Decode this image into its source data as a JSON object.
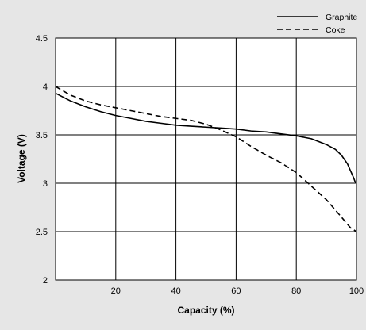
{
  "chart_data": {
    "type": "line",
    "xlabel": "Capacity (%)",
    "ylabel": "Voltage (V)",
    "xlim": [
      0,
      100
    ],
    "ylim": [
      2,
      4.5
    ],
    "xticks": [
      20,
      40,
      60,
      80,
      100
    ],
    "yticks": [
      2,
      2.5,
      3,
      3.5,
      4,
      4.5
    ],
    "grid": true,
    "legend_position": "top-right",
    "series": [
      {
        "name": "Graphite",
        "style": "solid",
        "color": "#000000",
        "x": [
          0,
          5,
          10,
          15,
          20,
          25,
          30,
          35,
          40,
          45,
          50,
          55,
          60,
          65,
          70,
          75,
          80,
          85,
          90,
          93,
          95,
          97,
          98,
          99,
          99.6,
          100
        ],
        "y": [
          3.93,
          3.85,
          3.79,
          3.74,
          3.7,
          3.67,
          3.64,
          3.62,
          3.6,
          3.59,
          3.58,
          3.57,
          3.56,
          3.54,
          3.53,
          3.51,
          3.49,
          3.46,
          3.4,
          3.35,
          3.29,
          3.2,
          3.13,
          3.06,
          3.01,
          3.0
        ]
      },
      {
        "name": "Coke",
        "style": "dashed",
        "color": "#000000",
        "x": [
          0,
          5,
          10,
          15,
          20,
          25,
          30,
          35,
          40,
          45,
          50,
          55,
          60,
          65,
          70,
          75,
          80,
          85,
          90,
          95,
          98,
          100
        ],
        "y": [
          4.0,
          3.91,
          3.85,
          3.81,
          3.78,
          3.75,
          3.72,
          3.69,
          3.67,
          3.65,
          3.61,
          3.55,
          3.48,
          3.38,
          3.29,
          3.21,
          3.11,
          2.97,
          2.83,
          2.65,
          2.54,
          2.5
        ]
      }
    ]
  }
}
